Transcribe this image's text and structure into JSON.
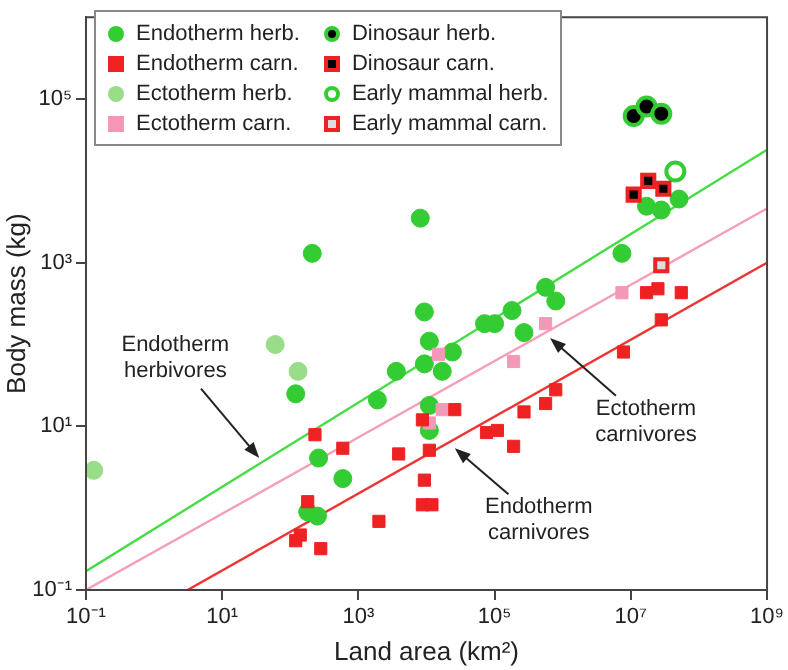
{
  "chart_data": {
    "type": "scatter",
    "xlabel": "Land area (km²)",
    "ylabel": "Body mass (kg)",
    "log": "xy",
    "grid": false,
    "legend": "top left",
    "xlim": [
      0.1,
      1000000000
    ],
    "ylim": [
      0.1,
      1000000
    ],
    "xticks": [
      {
        "value": 0.1,
        "label": "10⁻¹"
      },
      {
        "value": 10,
        "label": "10¹"
      },
      {
        "value": 1000,
        "label": "10³"
      },
      {
        "value": 100000,
        "label": "10⁵"
      },
      {
        "value": 10000000,
        "label": "10⁷"
      },
      {
        "value": 1000000000,
        "label": "10⁹"
      }
    ],
    "yticks": [
      {
        "value": 0.1,
        "label": "10⁻¹"
      },
      {
        "value": 10,
        "label": "10¹"
      },
      {
        "value": 1000,
        "label": "10³"
      },
      {
        "value": 100000,
        "label": "10⁵"
      }
    ],
    "series": [
      {
        "name": "Endotherm herb.",
        "type": "scatter",
        "marker": "circle",
        "color": "#33cc33",
        "x": [
          210,
          120,
          1900,
          3600,
          260,
          590,
          180,
          250,
          8100,
          17000000,
          28000000,
          51000000,
          7400000,
          560000,
          790000,
          180000,
          71000,
          100000,
          270000,
          9300,
          11000,
          24000,
          9300,
          17000,
          11000,
          11000
        ],
        "values": [
          1300,
          25,
          21,
          47,
          4.1,
          2.3,
          0.9,
          0.8,
          3500,
          4900,
          4400,
          6000,
          1300,
          500,
          340,
          260,
          180,
          180,
          140,
          250,
          110,
          81,
          58,
          47,
          18,
          8.9
        ]
      },
      {
        "name": "Endotherm carn.",
        "type": "scatter",
        "marker": "square",
        "color": "#ee2222",
        "x": [
          230,
          590,
          180,
          140,
          120,
          280,
          2000,
          3900,
          8700,
          26000,
          11000,
          9300,
          8700,
          12000,
          76000,
          110000,
          190000,
          270000,
          560000,
          790000,
          7800000,
          28000000,
          17000000,
          25000000,
          55000000
        ],
        "values": [
          7.9,
          5.4,
          1.2,
          0.47,
          0.4,
          0.32,
          0.69,
          4.6,
          12,
          16,
          5.1,
          2.2,
          1.1,
          1.1,
          8.4,
          8.9,
          5.7,
          15,
          19,
          28,
          81,
          200,
          430,
          480,
          430
        ]
      },
      {
        "name": "Ectotherm herb.",
        "type": "scatter",
        "marker": "circle",
        "color": "#99dd88",
        "x": [
          60,
          130,
          0.13
        ],
        "values": [
          100,
          47,
          2.9
        ]
      },
      {
        "name": "Ectotherm carn.",
        "type": "scatter",
        "marker": "square",
        "color": "#f598b8",
        "x": [
          15000,
          17000,
          11000,
          190000,
          560000,
          7400000
        ],
        "values": [
          76,
          16,
          11,
          62,
          180,
          430
        ]
      },
      {
        "name": "Dinosaur herb.",
        "type": "scatter",
        "marker": "circle",
        "color": "#000000",
        "x": [
          11000000,
          17000000,
          28000000
        ],
        "values": [
          62000,
          81000,
          66000
        ]
      },
      {
        "name": "Dinosaur carn.",
        "type": "scatter",
        "marker": "square",
        "color": "#000000",
        "x": [
          11000000,
          18000000,
          30000000
        ],
        "values": [
          6800,
          10000,
          8000
        ]
      },
      {
        "name": "Early mammal herb.",
        "type": "scatter",
        "marker": "circle",
        "color": "#ffffff",
        "x": [
          45000000
        ],
        "values": [
          13000
        ]
      },
      {
        "name": "Early mammal carn.",
        "type": "scatter",
        "marker": "square",
        "color": "#dddddd",
        "x": [
          28000000
        ],
        "values": [
          930
        ]
      },
      {
        "type": "line",
        "color": "#44dd44",
        "marker": "none",
        "x": [
          0.1,
          1000000000
        ],
        "values": [
          0.17,
          24000
        ]
      },
      {
        "type": "line",
        "color": "#f5a0b8",
        "marker": "none",
        "x": [
          0.1,
          1000000000
        ],
        "values": [
          0.1,
          4600
        ]
      },
      {
        "type": "line",
        "color": "#ee3333",
        "marker": "none",
        "x": [
          3.1,
          1000000000
        ],
        "values": [
          0.1,
          1000
        ]
      }
    ],
    "annotations": [
      {
        "text": "Endotherm herbivores",
        "x": 35,
        "y": 4.1
      },
      {
        "text": "Ectotherm carnivores",
        "x": 650000,
        "y": 120
      },
      {
        "text": "Endotherm carnivores",
        "x": 26000,
        "y": 5.4
      }
    ]
  }
}
